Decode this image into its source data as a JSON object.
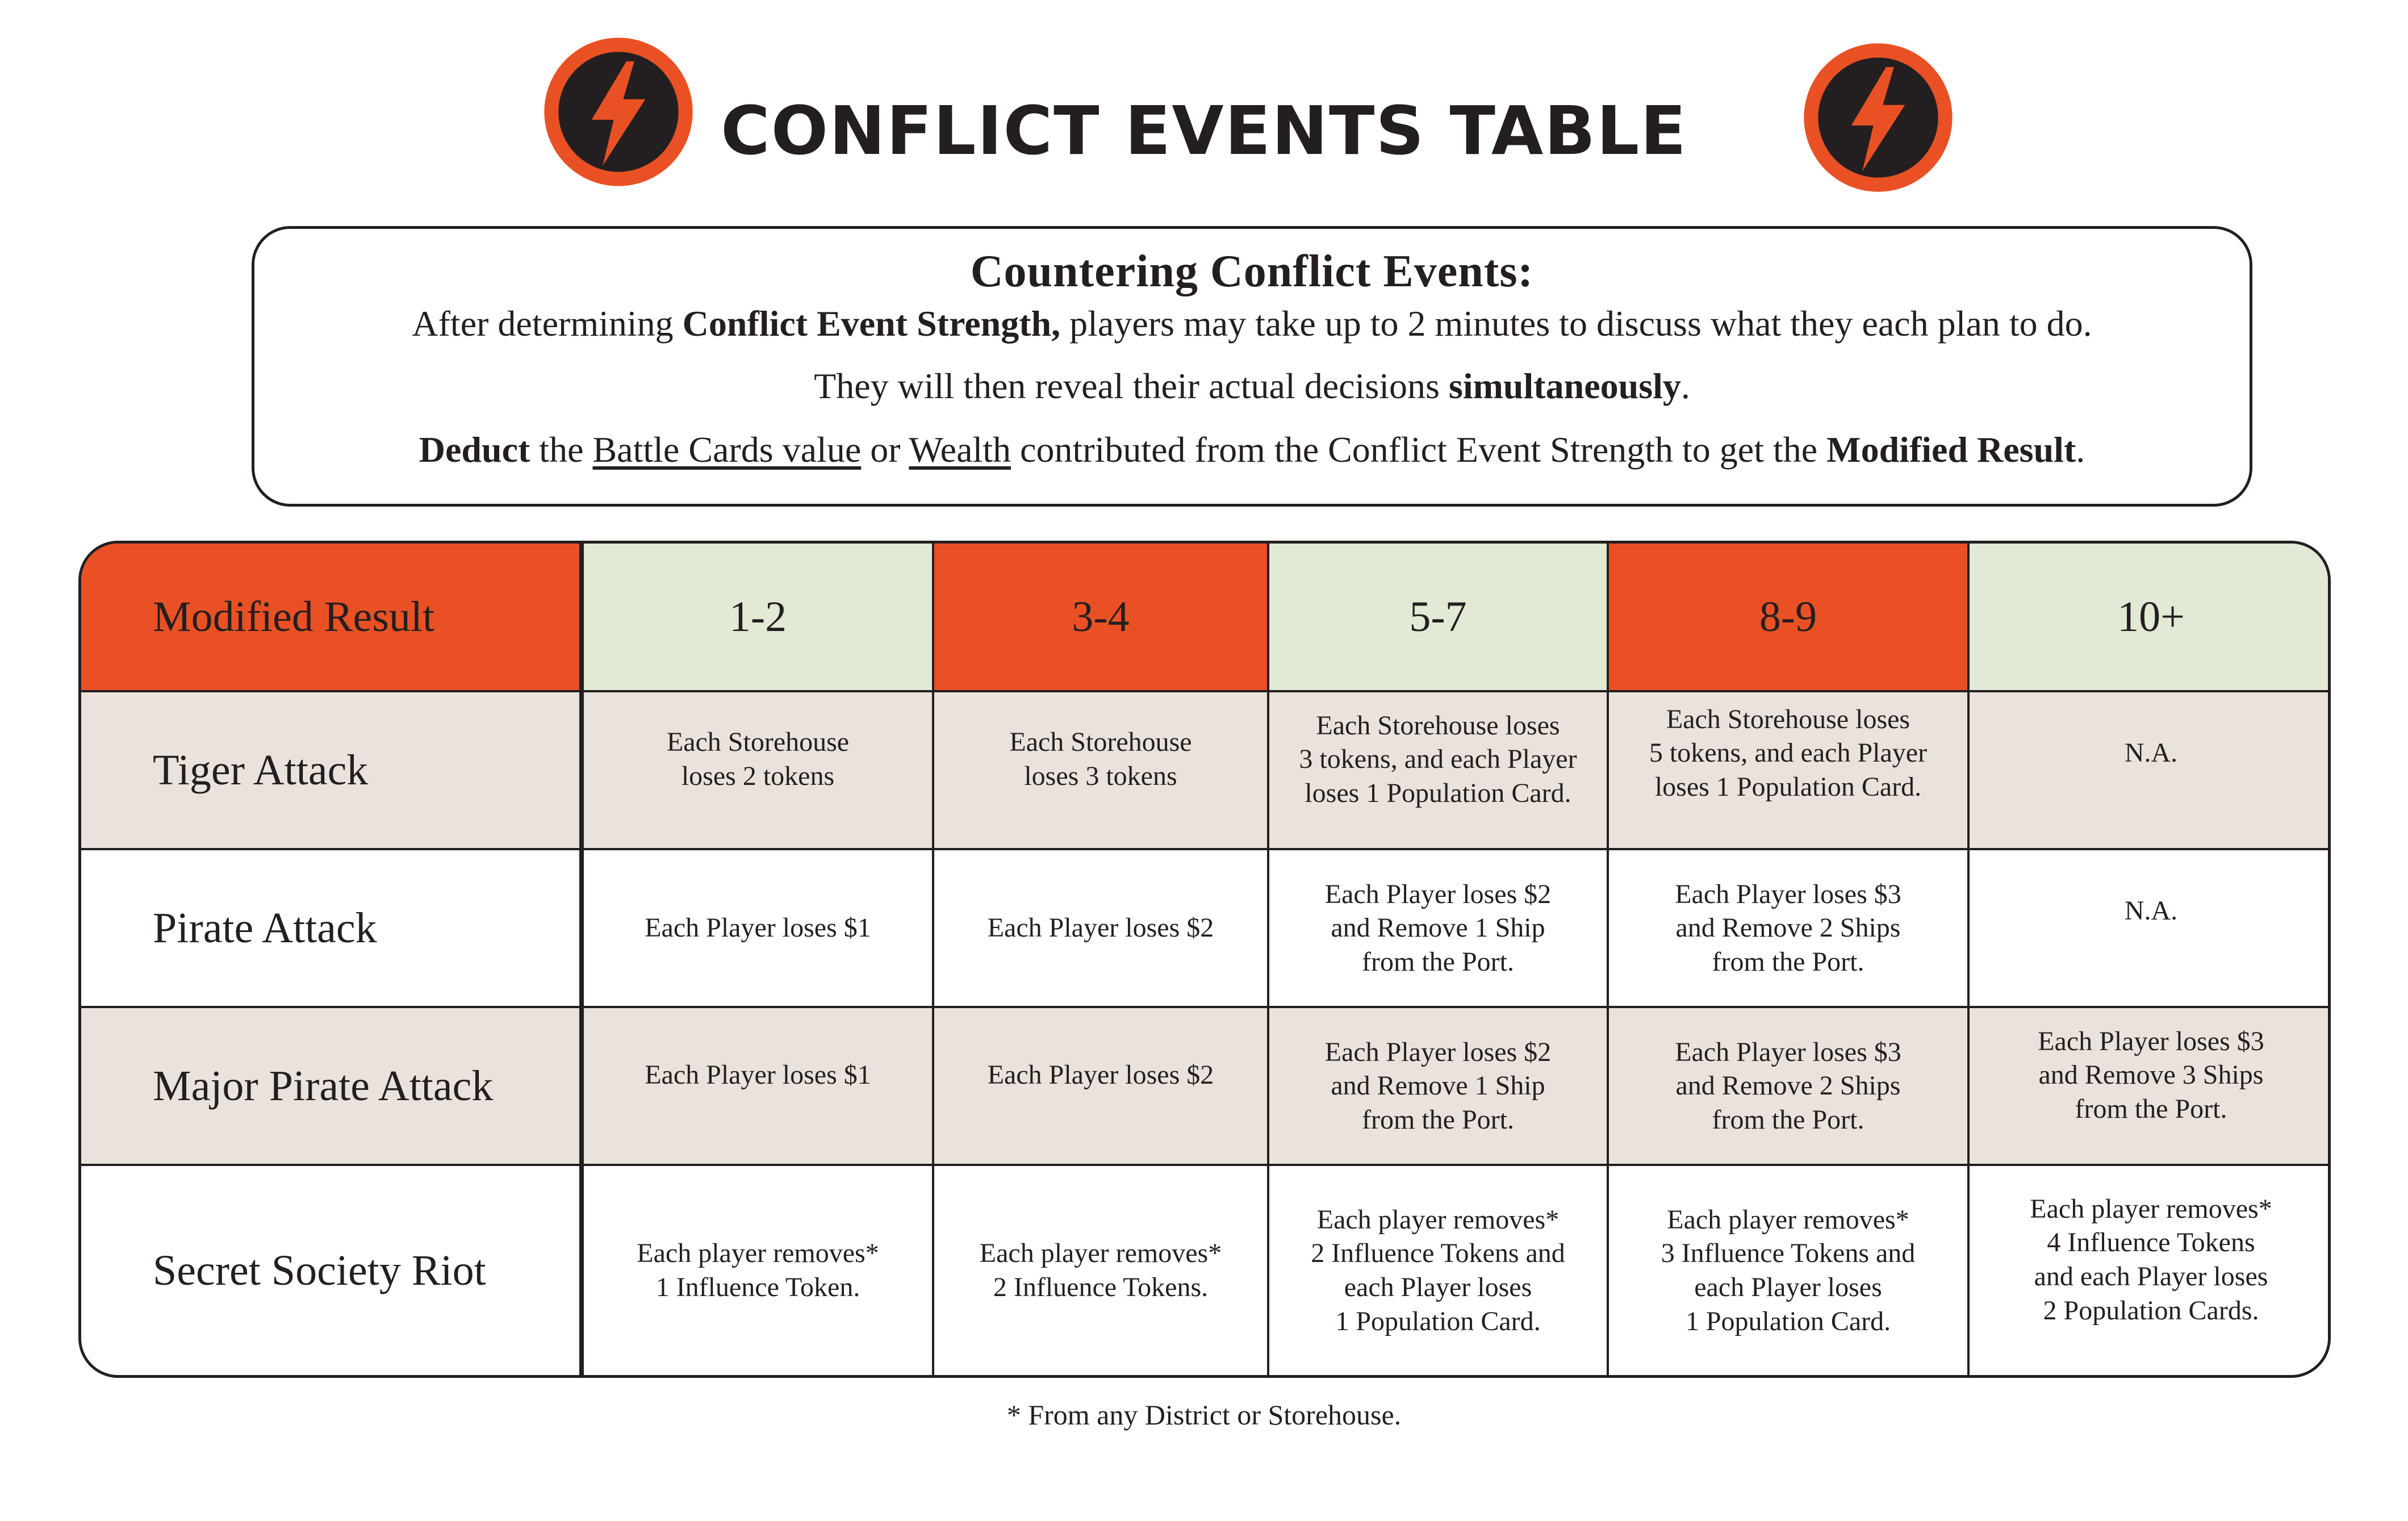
{
  "title": "CONFLICT EVENTS TABLE",
  "icons": {
    "badge": "lightning-bolt-icon",
    "badge_ring_color": "#e95124",
    "badge_fill_color": "#231f20"
  },
  "colors": {
    "accent_orange": "#e95124",
    "header_green": "#e2e9d4",
    "row_tan": "#eae3dd",
    "text": "#231f20"
  },
  "info": {
    "heading": "Countering Conflict Events:",
    "line1": {
      "a": "After determining ",
      "b_bold": "Conflict Event Strength,",
      "c": " players may take up to 2 minutes to discuss what they each plan to do."
    },
    "line2": {
      "a": "They will then reveal their actual decisions ",
      "b_bold": "simultaneously",
      "c": "."
    },
    "line3": {
      "a_bold": "Deduct",
      "b": " the ",
      "c_under": "Battle Cards value",
      "d": " or ",
      "e_under": "Wealth",
      "f": " contributed from the Conflict Event Strength to get the ",
      "g_bold": "Modified Result",
      "h": "."
    }
  },
  "table": {
    "header": [
      "Modified Result",
      "1-2",
      "3-4",
      "5-7",
      "8-9",
      "10+"
    ],
    "rows": [
      {
        "label": "Tiger Attack",
        "cells": [
          "Each Storehouse\nloses 2 tokens",
          "Each Storehouse\nloses 3 tokens",
          "Each Storehouse loses\n3 tokens, and each Player\nloses 1 Population Card.",
          "Each Storehouse loses\n5 tokens, and each Player\nloses 1 Population Card.",
          "N.A."
        ]
      },
      {
        "label": "Pirate Attack",
        "cells": [
          "Each Player loses $1",
          "Each Player loses $2",
          "Each Player loses $2\nand Remove 1 Ship\nfrom the Port.",
          "Each Player loses $3\nand Remove 2 Ships\nfrom the Port.",
          "N.A."
        ]
      },
      {
        "label": "Major Pirate Attack",
        "cells": [
          "Each Player loses $1",
          "Each Player loses $2",
          "Each Player loses $2\nand Remove 1 Ship\nfrom the Port.",
          "Each Player loses $3\nand Remove 2 Ships\nfrom the Port.",
          "Each Player loses $3\nand Remove 3 Ships\nfrom the Port."
        ]
      },
      {
        "label": "Secret Society Riot",
        "cells": [
          "Each player removes*\n1 Influence Token.",
          "Each player removes*\n2 Influence Tokens.",
          "Each player removes*\n2 Influence Tokens and\neach Player loses\n1 Population Card.",
          "Each player removes*\n3 Influence Tokens and\neach Player loses\n1 Population Card.",
          "Each player removes*\n4 Influence Tokens\nand each Player loses\n2 Population Cards."
        ]
      }
    ]
  },
  "footnote": "* From any District or Storehouse."
}
